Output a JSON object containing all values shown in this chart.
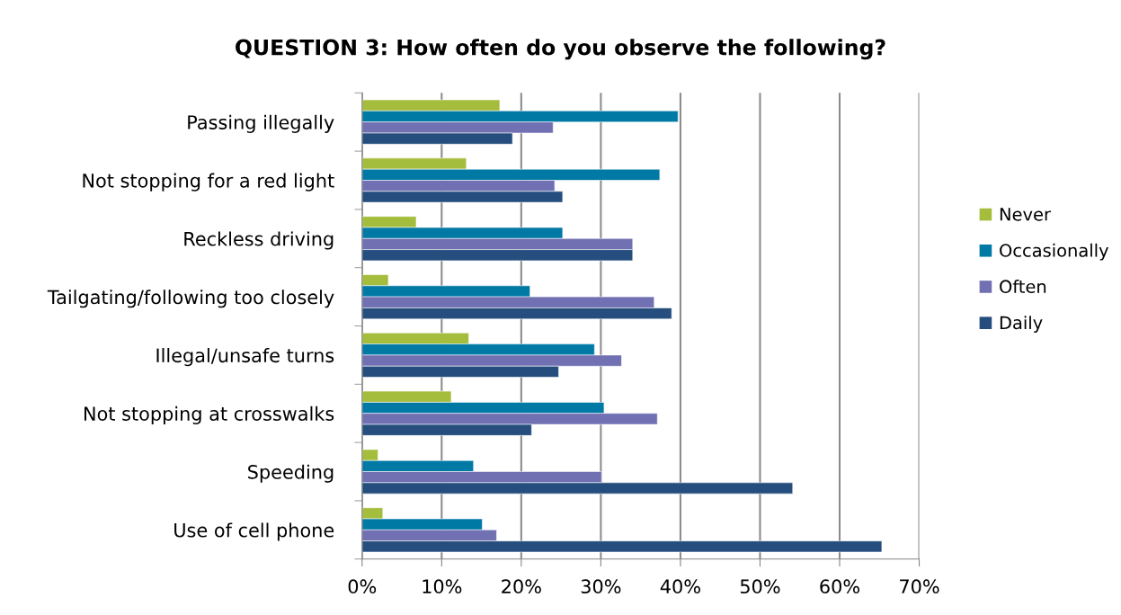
{
  "chart_data": {
    "type": "bar",
    "orientation": "horizontal",
    "title": "QUESTION 3: How often do you observe the following?",
    "categories": [
      "Passing illegally",
      "Not stopping for a red light",
      "Reckless driving",
      "Tailgating/following too closely",
      "Illegal/unsafe turns",
      "Not stopping at crosswalks",
      "Speeding",
      "Use of cell phone"
    ],
    "series": [
      {
        "name": "Never",
        "color": "#a5bd3c",
        "values": [
          0.173,
          0.131,
          0.068,
          0.033,
          0.134,
          0.112,
          0.02,
          0.026
        ]
      },
      {
        "name": "Occasionally",
        "color": "#0079a5",
        "values": [
          0.397,
          0.374,
          0.252,
          0.211,
          0.292,
          0.304,
          0.14,
          0.151
        ]
      },
      {
        "name": "Often",
        "color": "#7070b2",
        "values": [
          0.24,
          0.242,
          0.34,
          0.367,
          0.326,
          0.371,
          0.301,
          0.169
        ]
      },
      {
        "name": "Daily",
        "color": "#254e7e",
        "values": [
          0.189,
          0.252,
          0.34,
          0.389,
          0.247,
          0.213,
          0.541,
          0.653
        ]
      }
    ],
    "xlim": [
      0,
      0.7
    ],
    "xticks": [
      {
        "value": 0,
        "label": "0%"
      },
      {
        "value": 0.1,
        "label": "10%"
      },
      {
        "value": 0.2,
        "label": "20%"
      },
      {
        "value": 0.3,
        "label": "30%"
      },
      {
        "value": 0.4,
        "label": "40%"
      },
      {
        "value": 0.5,
        "label": "50%"
      },
      {
        "value": 0.6,
        "label": "60%"
      },
      {
        "value": 0.7,
        "label": "70%"
      }
    ],
    "grid": "x",
    "legend": "right"
  }
}
